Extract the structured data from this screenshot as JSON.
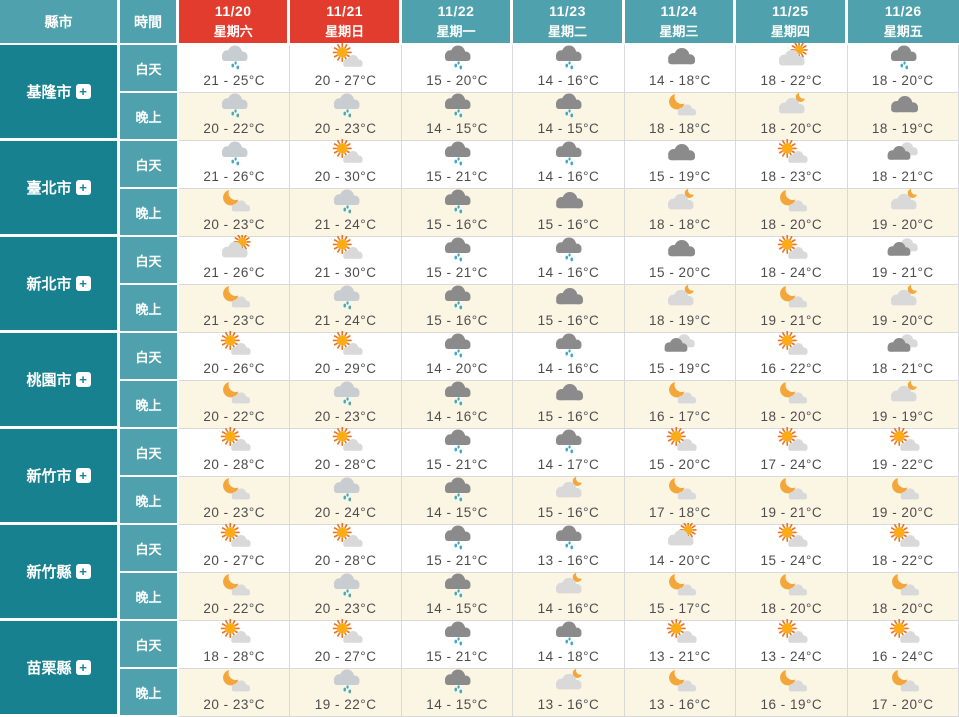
{
  "table": {
    "corner_label": "縣市",
    "time_label": "時間",
    "day_label": "白天",
    "night_label": "晚上",
    "plus_symbol": "+",
    "columns": [
      {
        "date": "11/20",
        "weekday": "星期六",
        "weekend": true
      },
      {
        "date": "11/21",
        "weekday": "星期日",
        "weekend": true
      },
      {
        "date": "11/22",
        "weekday": "星期一",
        "weekend": false
      },
      {
        "date": "11/23",
        "weekday": "星期二",
        "weekend": false
      },
      {
        "date": "11/24",
        "weekday": "星期三",
        "weekend": false
      },
      {
        "date": "11/25",
        "weekday": "星期四",
        "weekend": false
      },
      {
        "date": "11/26",
        "weekday": "星期五",
        "weekend": false
      }
    ],
    "cities": [
      {
        "name": "基隆市",
        "day": [
          {
            "icon": "drizzle",
            "temp": "21 - 25°C"
          },
          {
            "icon": "mostly-sunny",
            "temp": "20 - 27°C"
          },
          {
            "icon": "rain",
            "temp": "15 - 20°C"
          },
          {
            "icon": "rain",
            "temp": "14 - 16°C"
          },
          {
            "icon": "cloudy",
            "temp": "14 - 18°C"
          },
          {
            "icon": "sun-behind-cloud",
            "temp": "18 - 22°C"
          },
          {
            "icon": "rain",
            "temp": "18 - 20°C"
          }
        ],
        "night": [
          {
            "icon": "drizzle",
            "temp": "20 - 22°C"
          },
          {
            "icon": "drizzle",
            "temp": "20 - 23°C"
          },
          {
            "icon": "rain",
            "temp": "14 - 15°C"
          },
          {
            "icon": "rain",
            "temp": "14 - 15°C"
          },
          {
            "icon": "moon-with-cloud",
            "temp": "18 - 18°C"
          },
          {
            "icon": "moon-behind-cloud",
            "temp": "18 - 20°C"
          },
          {
            "icon": "cloudy",
            "temp": "18 - 19°C"
          }
        ]
      },
      {
        "name": "臺北市",
        "day": [
          {
            "icon": "drizzle",
            "temp": "21 - 26°C"
          },
          {
            "icon": "mostly-sunny",
            "temp": "20 - 30°C"
          },
          {
            "icon": "rain",
            "temp": "15 - 21°C"
          },
          {
            "icon": "rain",
            "temp": "14 - 16°C"
          },
          {
            "icon": "cloudy",
            "temp": "15 - 19°C"
          },
          {
            "icon": "mostly-sunny",
            "temp": "18 - 23°C"
          },
          {
            "icon": "cloudy-mixed",
            "temp": "18 - 21°C"
          }
        ],
        "night": [
          {
            "icon": "moon-with-cloud",
            "temp": "20 - 23°C"
          },
          {
            "icon": "drizzle",
            "temp": "21 - 24°C"
          },
          {
            "icon": "rain",
            "temp": "15 - 16°C"
          },
          {
            "icon": "cloudy",
            "temp": "15 - 16°C"
          },
          {
            "icon": "moon-behind-cloud",
            "temp": "18 - 18°C"
          },
          {
            "icon": "moon-with-cloud",
            "temp": "18 - 20°C"
          },
          {
            "icon": "moon-behind-cloud",
            "temp": "19 - 20°C"
          }
        ]
      },
      {
        "name": "新北市",
        "day": [
          {
            "icon": "sun-behind-cloud",
            "temp": "21 - 26°C"
          },
          {
            "icon": "mostly-sunny",
            "temp": "21 - 30°C"
          },
          {
            "icon": "rain",
            "temp": "15 - 21°C"
          },
          {
            "icon": "rain",
            "temp": "14 - 16°C"
          },
          {
            "icon": "cloudy",
            "temp": "15 - 20°C"
          },
          {
            "icon": "mostly-sunny",
            "temp": "18 - 24°C"
          },
          {
            "icon": "cloudy-mixed",
            "temp": "19 - 21°C"
          }
        ],
        "night": [
          {
            "icon": "moon-with-cloud",
            "temp": "21 - 23°C"
          },
          {
            "icon": "drizzle",
            "temp": "21 - 24°C"
          },
          {
            "icon": "rain",
            "temp": "15 - 16°C"
          },
          {
            "icon": "cloudy",
            "temp": "15 - 16°C"
          },
          {
            "icon": "moon-behind-cloud",
            "temp": "18 - 19°C"
          },
          {
            "icon": "moon-with-cloud",
            "temp": "19 - 21°C"
          },
          {
            "icon": "moon-behind-cloud",
            "temp": "19 - 20°C"
          }
        ]
      },
      {
        "name": "桃園市",
        "day": [
          {
            "icon": "mostly-sunny",
            "temp": "20 - 26°C"
          },
          {
            "icon": "mostly-sunny",
            "temp": "20 - 29°C"
          },
          {
            "icon": "rain",
            "temp": "14 - 20°C"
          },
          {
            "icon": "rain",
            "temp": "14 - 16°C"
          },
          {
            "icon": "cloudy-mixed",
            "temp": "15 - 19°C"
          },
          {
            "icon": "mostly-sunny",
            "temp": "16 - 22°C"
          },
          {
            "icon": "cloudy-mixed",
            "temp": "18 - 21°C"
          }
        ],
        "night": [
          {
            "icon": "moon-with-cloud",
            "temp": "20 - 22°C"
          },
          {
            "icon": "drizzle",
            "temp": "20 - 23°C"
          },
          {
            "icon": "rain",
            "temp": "14 - 16°C"
          },
          {
            "icon": "cloudy",
            "temp": "15 - 16°C"
          },
          {
            "icon": "moon-with-cloud",
            "temp": "16 - 17°C"
          },
          {
            "icon": "moon-with-cloud",
            "temp": "18 - 20°C"
          },
          {
            "icon": "moon-behind-cloud",
            "temp": "19 - 19°C"
          }
        ]
      },
      {
        "name": "新竹市",
        "day": [
          {
            "icon": "mostly-sunny",
            "temp": "20 - 28°C"
          },
          {
            "icon": "mostly-sunny",
            "temp": "20 - 28°C"
          },
          {
            "icon": "rain",
            "temp": "15 - 21°C"
          },
          {
            "icon": "rain",
            "temp": "14 - 17°C"
          },
          {
            "icon": "mostly-sunny",
            "temp": "15 - 20°C"
          },
          {
            "icon": "mostly-sunny",
            "temp": "17 - 24°C"
          },
          {
            "icon": "mostly-sunny",
            "temp": "19 - 22°C"
          }
        ],
        "night": [
          {
            "icon": "moon-with-cloud",
            "temp": "20 - 23°C"
          },
          {
            "icon": "drizzle",
            "temp": "20 - 24°C"
          },
          {
            "icon": "rain",
            "temp": "14 - 15°C"
          },
          {
            "icon": "moon-behind-cloud",
            "temp": "15 - 16°C"
          },
          {
            "icon": "moon-with-cloud",
            "temp": "17 - 18°C"
          },
          {
            "icon": "moon-with-cloud",
            "temp": "19 - 21°C"
          },
          {
            "icon": "moon-with-cloud",
            "temp": "19 - 20°C"
          }
        ]
      },
      {
        "name": "新竹縣",
        "day": [
          {
            "icon": "mostly-sunny",
            "temp": "20 - 27°C"
          },
          {
            "icon": "mostly-sunny",
            "temp": "20 - 28°C"
          },
          {
            "icon": "rain",
            "temp": "15 - 21°C"
          },
          {
            "icon": "rain",
            "temp": "13 - 16°C"
          },
          {
            "icon": "sun-behind-cloud",
            "temp": "14 - 20°C"
          },
          {
            "icon": "mostly-sunny",
            "temp": "15 - 24°C"
          },
          {
            "icon": "mostly-sunny",
            "temp": "18 - 22°C"
          }
        ],
        "night": [
          {
            "icon": "moon-with-cloud",
            "temp": "20 - 22°C"
          },
          {
            "icon": "drizzle",
            "temp": "20 - 23°C"
          },
          {
            "icon": "rain",
            "temp": "14 - 15°C"
          },
          {
            "icon": "moon-behind-cloud",
            "temp": "14 - 16°C"
          },
          {
            "icon": "moon-with-cloud",
            "temp": "15 - 17°C"
          },
          {
            "icon": "moon-with-cloud",
            "temp": "18 - 20°C"
          },
          {
            "icon": "moon-with-cloud",
            "temp": "18 - 20°C"
          }
        ]
      },
      {
        "name": "苗栗縣",
        "day": [
          {
            "icon": "mostly-sunny",
            "temp": "18 - 28°C"
          },
          {
            "icon": "mostly-sunny",
            "temp": "20 - 27°C"
          },
          {
            "icon": "rain",
            "temp": "15 - 21°C"
          },
          {
            "icon": "rain",
            "temp": "14 - 18°C"
          },
          {
            "icon": "mostly-sunny",
            "temp": "13 - 21°C"
          },
          {
            "icon": "mostly-sunny",
            "temp": "13 - 24°C"
          },
          {
            "icon": "mostly-sunny",
            "temp": "16 - 24°C"
          }
        ],
        "night": [
          {
            "icon": "moon-with-cloud",
            "temp": "20 - 23°C"
          },
          {
            "icon": "drizzle",
            "temp": "19 - 22°C"
          },
          {
            "icon": "rain",
            "temp": "14 - 15°C"
          },
          {
            "icon": "moon-behind-cloud",
            "temp": "13 - 16°C"
          },
          {
            "icon": "moon-with-cloud",
            "temp": "13 - 16°C"
          },
          {
            "icon": "moon-with-cloud",
            "temp": "16 - 19°C"
          },
          {
            "icon": "moon-with-cloud",
            "temp": "17 - 20°C"
          }
        ]
      }
    ]
  },
  "colors": {
    "header_teal": "#4FA2AD",
    "weekend_red": "#E23C2E",
    "city_teal": "#17818F",
    "day_bg": "#FFFFFF",
    "night_bg": "#FBF5E4",
    "grid_line": "#D9D9D9",
    "temp_text": "#4D4D4D",
    "sun_core": "#FBAD18",
    "sun_ray": "#EB7223",
    "moon": "#F3A73B",
    "cloud_dark": "#8B8B8B",
    "cloud_light": "#C8CDD1",
    "cloud_lighter": "#D9D9D9",
    "rain_drop": "#3FA9C5"
  }
}
